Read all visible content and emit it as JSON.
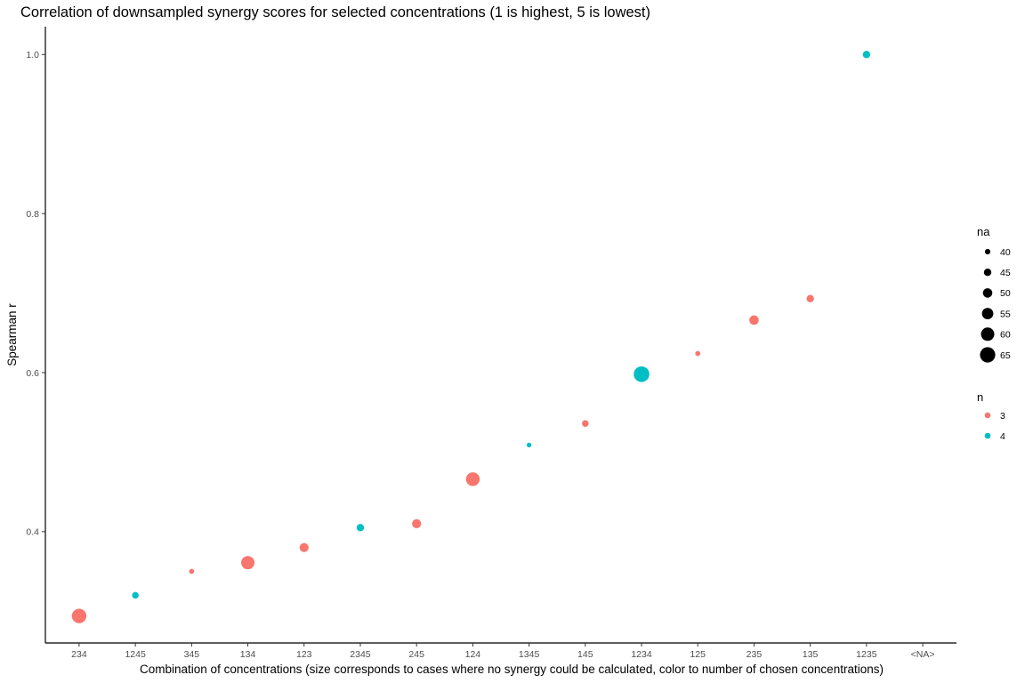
{
  "chart_data": {
    "type": "scatter",
    "title": "Correlation of downsampled synergy scores for selected concentrations (1 is highest, 5 is lowest)",
    "xlabel": "Combination of concentrations (size corresponds to cases where no synergy could be calculated, color to number of chosen concentrations)",
    "ylabel": "Spearman r",
    "ylim": [
      0.26,
      1.035
    ],
    "yticks": [
      0.4,
      0.6,
      0.8,
      1.0
    ],
    "ytick_labels": [
      "0.4",
      "0.6",
      "0.8",
      "1.0"
    ],
    "categories": [
      "234",
      "1245",
      "345",
      "134",
      "123",
      "2345",
      "245",
      "124",
      "1345",
      "145",
      "1234",
      "125",
      "235",
      "135",
      "1235",
      "<NA>"
    ],
    "grid": false,
    "points": [
      {
        "x": "234",
        "y": 0.294,
        "na": 63,
        "n": 3
      },
      {
        "x": "1245",
        "y": 0.32,
        "na": 43,
        "n": 4
      },
      {
        "x": "345",
        "y": 0.35,
        "na": 39,
        "n": 3
      },
      {
        "x": "134",
        "y": 0.361,
        "na": 60,
        "n": 3
      },
      {
        "x": "123",
        "y": 0.38,
        "na": 49,
        "n": 3
      },
      {
        "x": "2345",
        "y": 0.405,
        "na": 45,
        "n": 4
      },
      {
        "x": "245",
        "y": 0.41,
        "na": 49,
        "n": 3
      },
      {
        "x": "124",
        "y": 0.466,
        "na": 61,
        "n": 3
      },
      {
        "x": "1345",
        "y": 0.509,
        "na": 38,
        "n": 4
      },
      {
        "x": "145",
        "y": 0.536,
        "na": 43,
        "n": 3
      },
      {
        "x": "1234",
        "y": 0.598,
        "na": 66,
        "n": 4
      },
      {
        "x": "125",
        "y": 0.624,
        "na": 39,
        "n": 3
      },
      {
        "x": "235",
        "y": 0.666,
        "na": 50,
        "n": 3
      },
      {
        "x": "135",
        "y": 0.693,
        "na": 45,
        "n": 3
      },
      {
        "x": "1235",
        "y": 1.0,
        "na": 45,
        "n": 4
      }
    ],
    "legend": {
      "placement": "right",
      "size": {
        "title": "na",
        "values": [
          40,
          45,
          50,
          55,
          60,
          65
        ],
        "labels": [
          "40",
          "45",
          "50",
          "55",
          "60",
          "65"
        ]
      },
      "color": {
        "title": "n",
        "values": [
          3,
          4
        ],
        "labels": [
          "3",
          "4"
        ],
        "colors": [
          "#F8766D",
          "#00BFC4"
        ]
      }
    }
  }
}
